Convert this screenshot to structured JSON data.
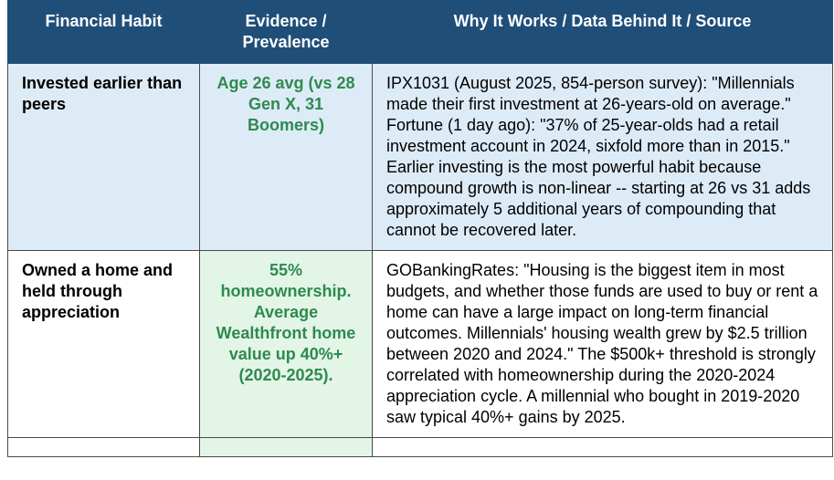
{
  "headers": [
    "Financial Habit",
    "Evidence / Prevalence",
    "Why It Works / Data Behind It / Source"
  ],
  "rows": [
    {
      "habit": "Invested earlier than peers",
      "evidence": "Age 26 avg (vs 28 Gen X, 31 Boomers)",
      "why": "IPX1031 (August 2025, 854-person survey): \"Millennials made their first investment at 26-years-old on average.\" Fortune (1 day ago): \"37% of 25-year-olds had a retail investment account in 2024, sixfold more than in 2015.\" Earlier investing is the most powerful habit because compound growth is non-linear -- starting at 26 vs 31 adds approximately 5 additional years of compounding that cannot be recovered later."
    },
    {
      "habit": "Owned a home and held through appreciation",
      "evidence": "55% homeownership. Average Wealthfront home value up 40%+ (2020-2025).",
      "why": "GOBankingRates: \"Housing is the biggest item in most budgets, and whether those funds are used to buy or rent a home can have a large impact on long-term financial outcomes. Millennials' housing wealth grew by $2.5 trillion between 2020 and 2024.\" The $500k+ threshold is strongly correlated with homeownership during the 2020-2024 appreciation cycle. A millennial who bought in 2019-2020 saw typical 40%+ gains by 2025."
    }
  ]
}
